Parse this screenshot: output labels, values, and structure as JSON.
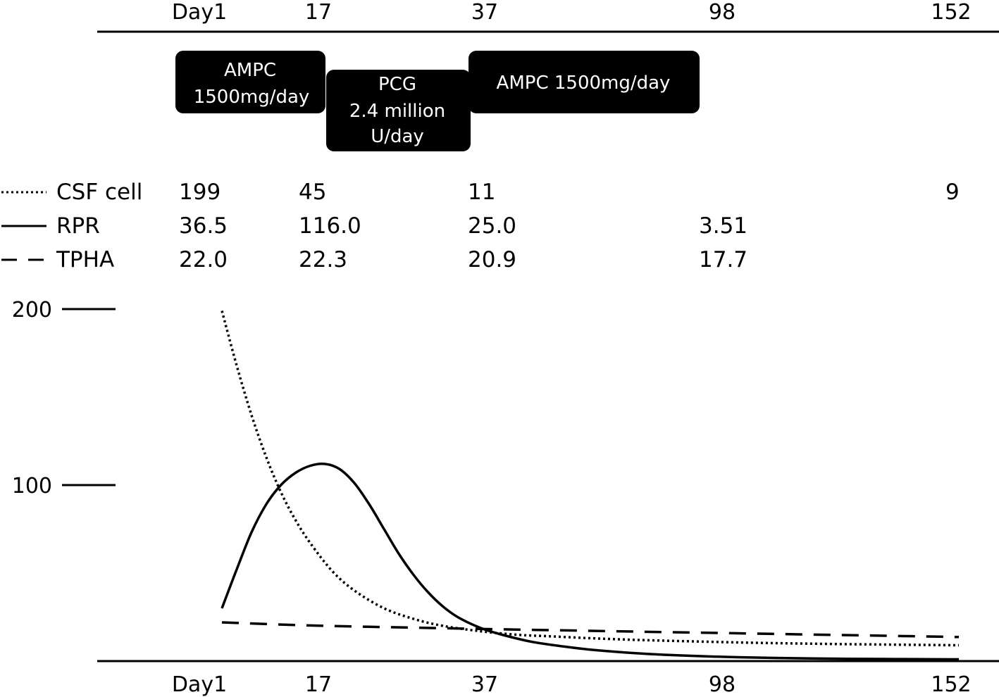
{
  "chart_data": {
    "type": "line",
    "x_ticks": [
      "Day1",
      "17",
      "37",
      "98",
      "152"
    ],
    "y_ticks": [
      "200",
      "100"
    ],
    "ylim": [
      0,
      200
    ],
    "treatments": [
      {
        "lines": [
          "AMPC",
          "1500mg/day"
        ]
      },
      {
        "lines": [
          "PCG",
          "2.4 million",
          "U/day"
        ]
      },
      {
        "lines": [
          "AMPC 1500mg/day"
        ]
      }
    ],
    "series": [
      {
        "name": "CSF cell",
        "style": "dotted",
        "values": [
          "199",
          "45",
          "11",
          "",
          "9"
        ]
      },
      {
        "name": "RPR",
        "style": "solid",
        "values": [
          "36.5",
          "116.0",
          "25.0",
          "3.51",
          ""
        ]
      },
      {
        "name": "TPHA",
        "style": "dashed",
        "values": [
          "22.0",
          "22.3",
          "20.9",
          "17.7",
          ""
        ]
      }
    ],
    "curves": [
      {
        "series": "CSF cell",
        "x": [
          0,
          2,
          4,
          6,
          8,
          10,
          12,
          15,
          18,
          22,
          26,
          30,
          35,
          40,
          45,
          50,
          55,
          60,
          65,
          70,
          75,
          80,
          85,
          90,
          95,
          100
        ],
        "y": [
          199,
          168,
          140,
          116,
          96,
          80,
          67,
          51,
          40,
          30,
          24,
          20,
          17,
          15,
          14,
          13,
          12.2,
          11.6,
          11.1,
          10.6,
          10.2,
          9.9,
          9.6,
          9.4,
          9.2,
          9
        ]
      },
      {
        "series": "RPR",
        "x": [
          0,
          2,
          4,
          6,
          8,
          10,
          12,
          14,
          16,
          18,
          20,
          22,
          24,
          26,
          28,
          30,
          32,
          35,
          38,
          42,
          46,
          50,
          55,
          60,
          65,
          70,
          75,
          80,
          85,
          90,
          95,
          100
        ],
        "y": [
          30,
          52,
          73,
          89,
          100,
          107,
          111,
          112,
          109,
          101,
          89,
          75,
          61,
          49,
          39,
          31,
          25,
          19,
          15,
          11,
          8.5,
          6.5,
          4.8,
          3.6,
          2.8,
          2.2,
          1.8,
          1.5,
          1.3,
          1.2,
          1.1,
          1
        ]
      },
      {
        "series": "TPHA",
        "x": [
          0,
          10,
          20,
          30,
          40,
          50,
          60,
          70,
          80,
          90,
          100
        ],
        "y": [
          22,
          20.5,
          19.5,
          18.7,
          17.9,
          17.2,
          16.5,
          15.8,
          15.1,
          14.4,
          13.7
        ]
      }
    ]
  }
}
